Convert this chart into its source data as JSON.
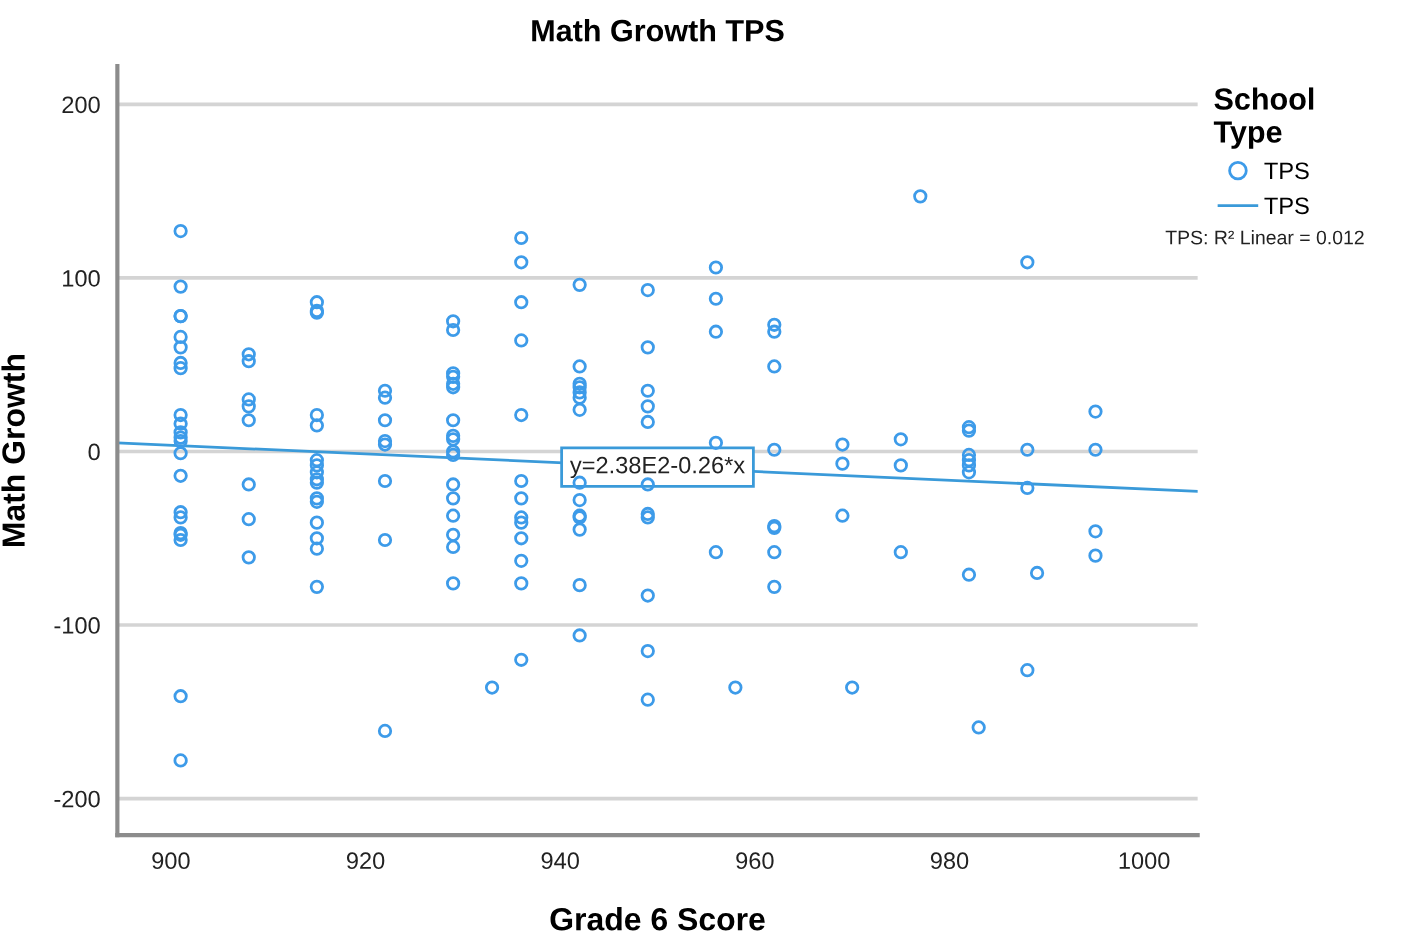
{
  "chart_data": {
    "type": "scatter",
    "title": "Math Growth TPS",
    "xlabel": "Grade 6 Score",
    "ylabel": "Math Growth",
    "legend_title": "School\nType",
    "xlim": [
      894.5,
      1005.5
    ],
    "xticks": [
      900,
      920,
      940,
      960,
      980,
      1000
    ],
    "ylim": [
      -221,
      222
    ],
    "yticks": [
      -200,
      -100,
      0,
      100,
      200
    ],
    "grid": "y",
    "legend": "top right",
    "annotations": [
      "TPS: R² Linear = 0.012",
      {
        "text": "y=2.38E2-0.26*x",
        "x": 950,
        "y": -9
      }
    ],
    "series": [
      {
        "name": "TPS",
        "color": "#3d9be9",
        "marker": "circle",
        "x": [
          901,
          901,
          901,
          901,
          901,
          901,
          901,
          901,
          901,
          901,
          901,
          901,
          901,
          901,
          901,
          901,
          901,
          901,
          901,
          901,
          901,
          901,
          908,
          908,
          908,
          908,
          908,
          908,
          908,
          908,
          915,
          915,
          915,
          915,
          915,
          915,
          915,
          915,
          915,
          915,
          915,
          915,
          915,
          915,
          915,
          915,
          922,
          922,
          922,
          922,
          922,
          922,
          922,
          922,
          929,
          929,
          929,
          929,
          929,
          929,
          929,
          929,
          929,
          929,
          929,
          929,
          929,
          929,
          929,
          929,
          929,
          933,
          936,
          936,
          936,
          936,
          936,
          936,
          936,
          936,
          936,
          936,
          936,
          936,
          936,
          942,
          942,
          942,
          942,
          942,
          942,
          942,
          942,
          942,
          942,
          942,
          942,
          942,
          942,
          949,
          949,
          949,
          949,
          949,
          949,
          949,
          949,
          949,
          949,
          949,
          956,
          956,
          956,
          956,
          956,
          958,
          962,
          962,
          962,
          962,
          962,
          962,
          962,
          962,
          969,
          969,
          969,
          970,
          975,
          975,
          975,
          977,
          982,
          982,
          982,
          982,
          982,
          982,
          982,
          983,
          988,
          988,
          988,
          988,
          989,
          995,
          995,
          995,
          995
        ],
        "values": [
          127,
          95,
          78,
          78,
          66,
          60,
          51,
          48,
          21,
          16,
          11,
          8,
          6,
          -1,
          -14,
          -35,
          -38,
          -47,
          -48,
          -51,
          -141,
          -178,
          56,
          52,
          30,
          26,
          18,
          -19,
          -39,
          -61,
          86,
          81,
          80,
          21,
          15,
          -5,
          -8,
          -12,
          -16,
          -18,
          -27,
          -29,
          -41,
          -50,
          -56,
          -78,
          35,
          31,
          18,
          6,
          4,
          -17,
          -51,
          -161,
          75,
          70,
          45,
          43,
          39,
          37,
          18,
          9,
          7,
          0,
          -2,
          -19,
          -27,
          -37,
          -48,
          -55,
          -76,
          -136,
          123,
          109,
          86,
          64,
          21,
          -17,
          -27,
          -38,
          -41,
          -50,
          -63,
          -76,
          -120,
          96,
          49,
          39,
          37,
          34,
          31,
          24,
          -18,
          -28,
          -37,
          -38,
          -45,
          -77,
          -106,
          93,
          60,
          35,
          26,
          17,
          -19,
          -36,
          -38,
          -83,
          -115,
          -143,
          106,
          88,
          69,
          5,
          -58,
          -136,
          73,
          69,
          49,
          1,
          -43,
          -44,
          -58,
          -78,
          4,
          -7,
          -37,
          -136,
          7,
          -8,
          -58,
          147,
          14,
          12,
          -2,
          -5,
          -8,
          -12,
          -71,
          -159,
          109,
          1,
          -21,
          -126,
          -70,
          23,
          1,
          -46,
          -60
        ]
      },
      {
        "name": "TPS",
        "type": "line",
        "color": "#3a9ad9",
        "line_style": "solid",
        "x": [
          894.5,
          1005.5
        ],
        "values": [
          5,
          -23
        ]
      }
    ]
  }
}
